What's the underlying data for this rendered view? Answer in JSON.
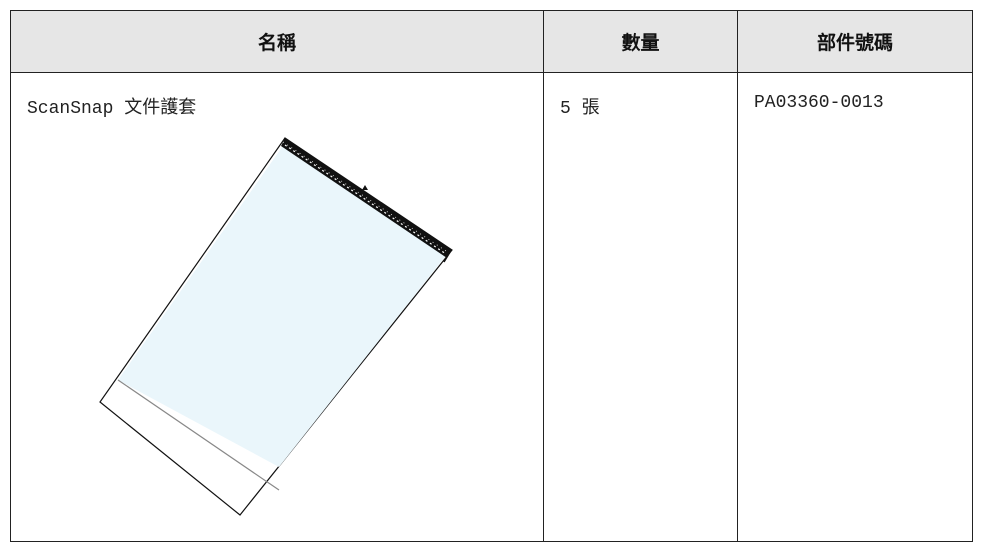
{
  "table": {
    "header": [
      "名稱",
      "數量",
      "部件號碼"
    ],
    "rows": [
      [
        "ScanSnap 文件護套",
        "5 張",
        "PA03360-0013"
      ]
    ]
  }
}
